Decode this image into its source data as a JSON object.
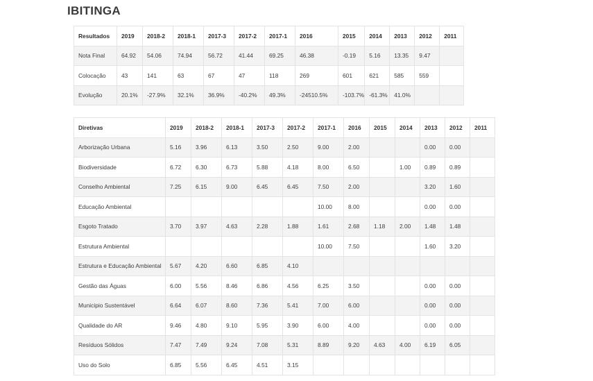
{
  "title": "IBITINGA",
  "results": {
    "header": [
      "Resultados",
      "2019",
      "2018-2",
      "2018-1",
      "2017-3",
      "2017-2",
      "2017-1",
      "2016",
      "2015",
      "2014",
      "2013",
      "2012",
      "2011"
    ],
    "rows": [
      [
        "Nota Final",
        "64.92",
        "54.06",
        "74.94",
        "56.72",
        "41.44",
        "69.25",
        "46.38",
        "-0.19",
        "5.16",
        "13.35",
        "9.47",
        ""
      ],
      [
        "Colocação",
        "43",
        "141",
        "63",
        "67",
        "47",
        "118",
        "269",
        "601",
        "621",
        "585",
        "559",
        ""
      ],
      [
        "Evolução",
        "20.1%",
        "-27.9%",
        "32.1%",
        "36.9%",
        "-40.2%",
        "49.3%",
        "-24510.5%",
        "-103.7%",
        "-61.3%",
        "41.0%",
        "",
        ""
      ]
    ]
  },
  "directives": {
    "header": [
      "Diretivas",
      "2019",
      "2018-2",
      "2018-1",
      "2017-3",
      "2017-2",
      "2017-1",
      "2016",
      "2015",
      "2014",
      "2013",
      "2012",
      "2011"
    ],
    "rows": [
      [
        "Arborização Urbana",
        "5.16",
        "3.96",
        "6.13",
        "3.50",
        "2.50",
        "9.00",
        "2.00",
        "",
        "",
        "0.00",
        "0.00",
        ""
      ],
      [
        "Biodiversidade",
        "6.72",
        "6.30",
        "6.73",
        "5.88",
        "4.18",
        "8.00",
        "6.50",
        "",
        "1.00",
        "0.89",
        "0.89",
        ""
      ],
      [
        "Conselho Ambiental",
        "7.25",
        "6.15",
        "9.00",
        "6.45",
        "6.45",
        "7.50",
        "2.00",
        "",
        "",
        "3.20",
        "1.60",
        ""
      ],
      [
        "Educação Ambiental",
        "",
        "",
        "",
        "",
        "",
        "10.00",
        "8.00",
        "",
        "",
        "0.00",
        "0.00",
        ""
      ],
      [
        "Esgoto Tratado",
        "3.70",
        "3.97",
        "4.63",
        "2.28",
        "1.88",
        "1.61",
        "2.68",
        "1.18",
        "2.00",
        "1.48",
        "1.48",
        ""
      ],
      [
        "Estrutura Ambiental",
        "",
        "",
        "",
        "",
        "",
        "10.00",
        "7.50",
        "",
        "",
        "1.60",
        "3.20",
        ""
      ],
      [
        "Estrutura e Educação Ambiental",
        "5.67",
        "4.20",
        "6.60",
        "6.85",
        "4.10",
        "",
        "",
        "",
        "",
        "",
        "",
        ""
      ],
      [
        "Gestão das Águas",
        "6.00",
        "5.56",
        "8.46",
        "6.86",
        "4.56",
        "6.25",
        "3.50",
        "",
        "",
        "0.00",
        "0.00",
        ""
      ],
      [
        "Municipio Sustentável",
        "6.64",
        "6.07",
        "8.60",
        "7.36",
        "5.41",
        "7.00",
        "6.00",
        "",
        "",
        "0.00",
        "0.00",
        ""
      ],
      [
        "Qualidade do AR",
        "9.46",
        "4.80",
        "9.10",
        "5.95",
        "3.90",
        "6.00",
        "4.00",
        "",
        "",
        "0.00",
        "0.00",
        ""
      ],
      [
        "Resíduos Sólidos",
        "7.47",
        "7.49",
        "9.24",
        "7.08",
        "5.31",
        "8.89",
        "9.20",
        "4.63",
        "4.00",
        "6.19",
        "6.05",
        ""
      ],
      [
        "Uso do Solo",
        "6.85",
        "5.56",
        "6.45",
        "4.51",
        "3.15",
        "",
        "",
        "",
        "",
        "",
        "",
        ""
      ]
    ]
  }
}
